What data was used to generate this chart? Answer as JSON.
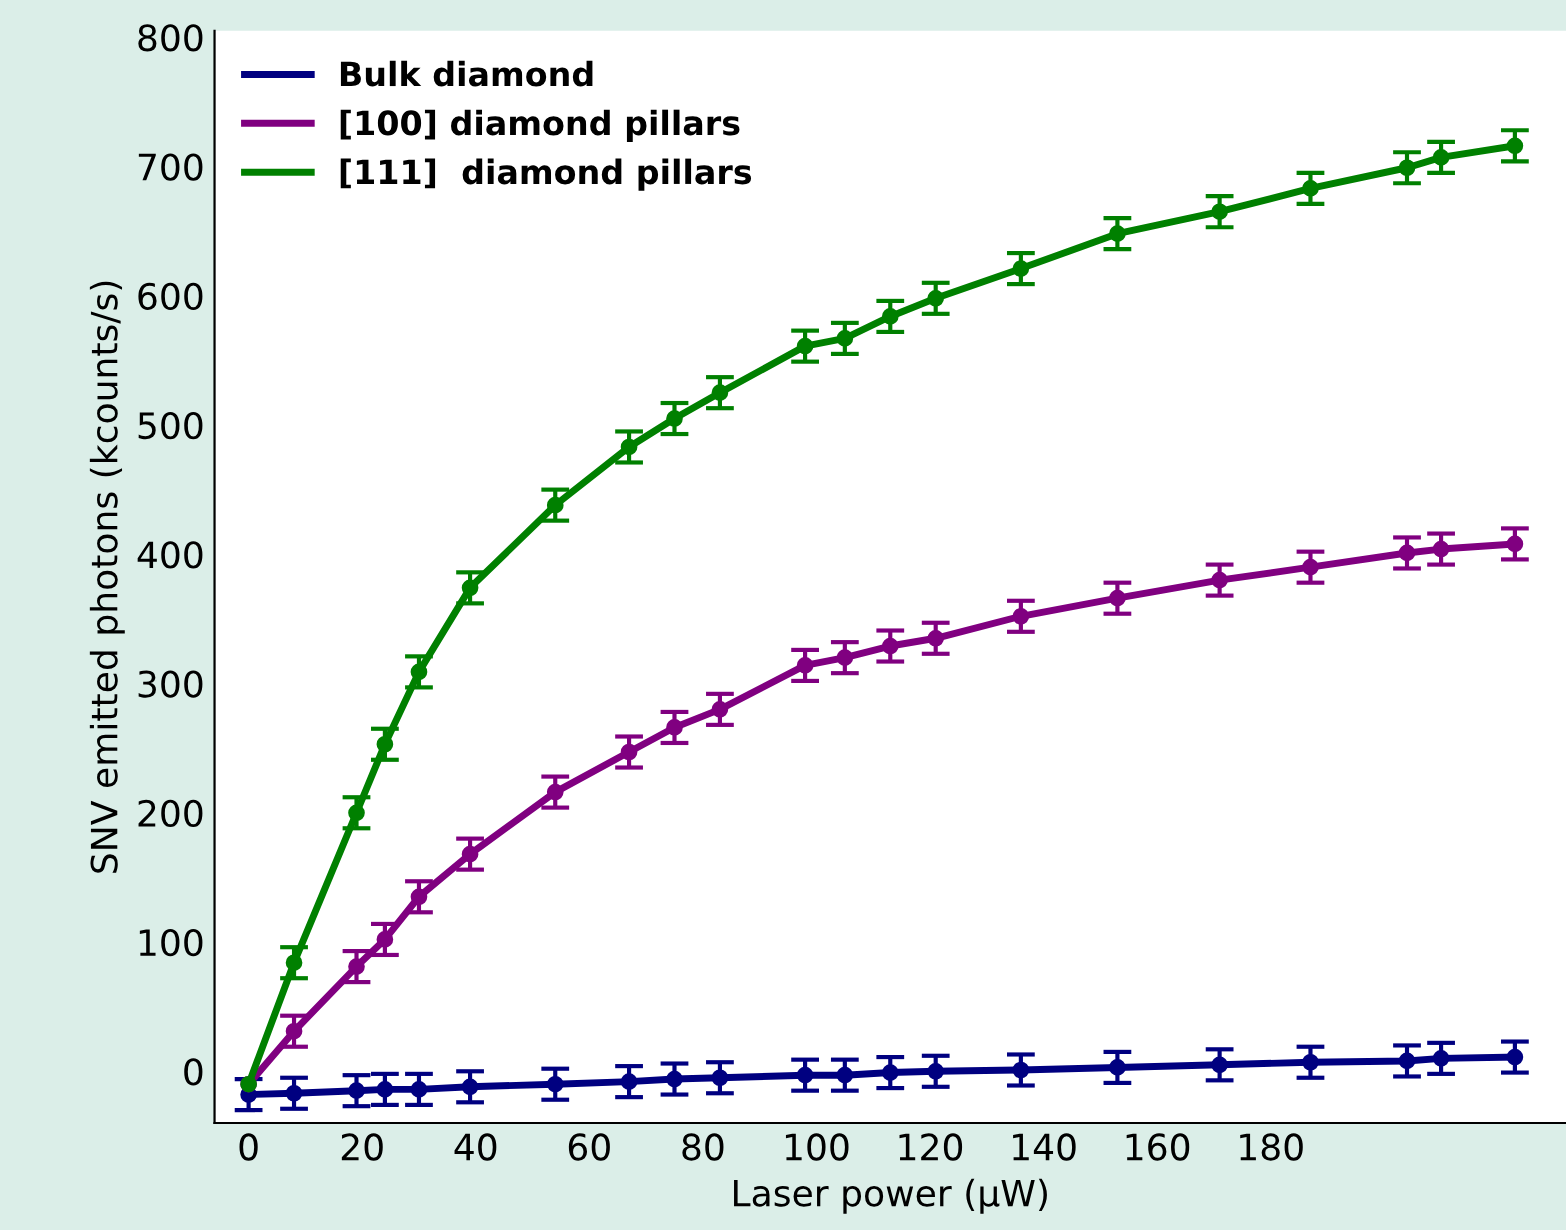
{
  "chart_data": {
    "type": "line",
    "xlabel": "Laser power (µW)",
    "ylabel": "SNV emitted photons (kcounts/s)",
    "x": [
      0,
      8,
      19,
      24,
      30,
      39,
      54,
      67,
      75,
      83,
      98,
      105,
      113,
      121,
      136,
      153,
      171,
      187,
      204,
      210,
      223
    ],
    "series": [
      {
        "name": "Bulk diamond",
        "color": "#000080",
        "values": [
          -18,
          -17,
          -15,
          -14,
          -14,
          -12,
          -10,
          -8,
          -6,
          -5,
          -3,
          -3,
          -1,
          0,
          1,
          3,
          5,
          7,
          8,
          10,
          11
        ],
        "errors": [
          12,
          12,
          12,
          12,
          12,
          12,
          12,
          12,
          12,
          12,
          12,
          12,
          12,
          12,
          12,
          12,
          12,
          12,
          12,
          12,
          12
        ]
      },
      {
        "name": "[100] diamond pillars",
        "color": "#800080",
        "values": [
          -10,
          31,
          81,
          102,
          135,
          168,
          216,
          247,
          266,
          280,
          314,
          320,
          329,
          335,
          352,
          366,
          380,
          390,
          401,
          404,
          408
        ],
        "errors": [
          null,
          12,
          12,
          12,
          12,
          12,
          12,
          12,
          12,
          12,
          12,
          12,
          12,
          12,
          12,
          12,
          12,
          12,
          12,
          12,
          12
        ]
      },
      {
        "name": "[111]  diamond pillars",
        "color": "#008000",
        "values": [
          -10,
          84,
          200,
          253,
          309,
          374,
          438,
          483,
          505,
          525,
          561,
          567,
          584,
          598,
          621,
          648,
          665,
          683,
          699,
          707,
          716
        ],
        "errors": [
          null,
          12,
          12,
          12,
          12,
          12,
          12,
          12,
          12,
          12,
          12,
          12,
          12,
          12,
          12,
          12,
          12,
          12,
          12,
          12,
          12
        ]
      }
    ],
    "xlim": [
      -6,
      232
    ],
    "ylim": [
      -40,
      805
    ],
    "xticks": [
      0,
      20,
      40,
      60,
      80,
      100,
      120,
      140,
      160,
      180
    ],
    "yticks": [
      0,
      100,
      200,
      300,
      400,
      500,
      600,
      700,
      800
    ],
    "grid": false,
    "legend": "top left",
    "marker": "circle",
    "line_style": "solid"
  }
}
